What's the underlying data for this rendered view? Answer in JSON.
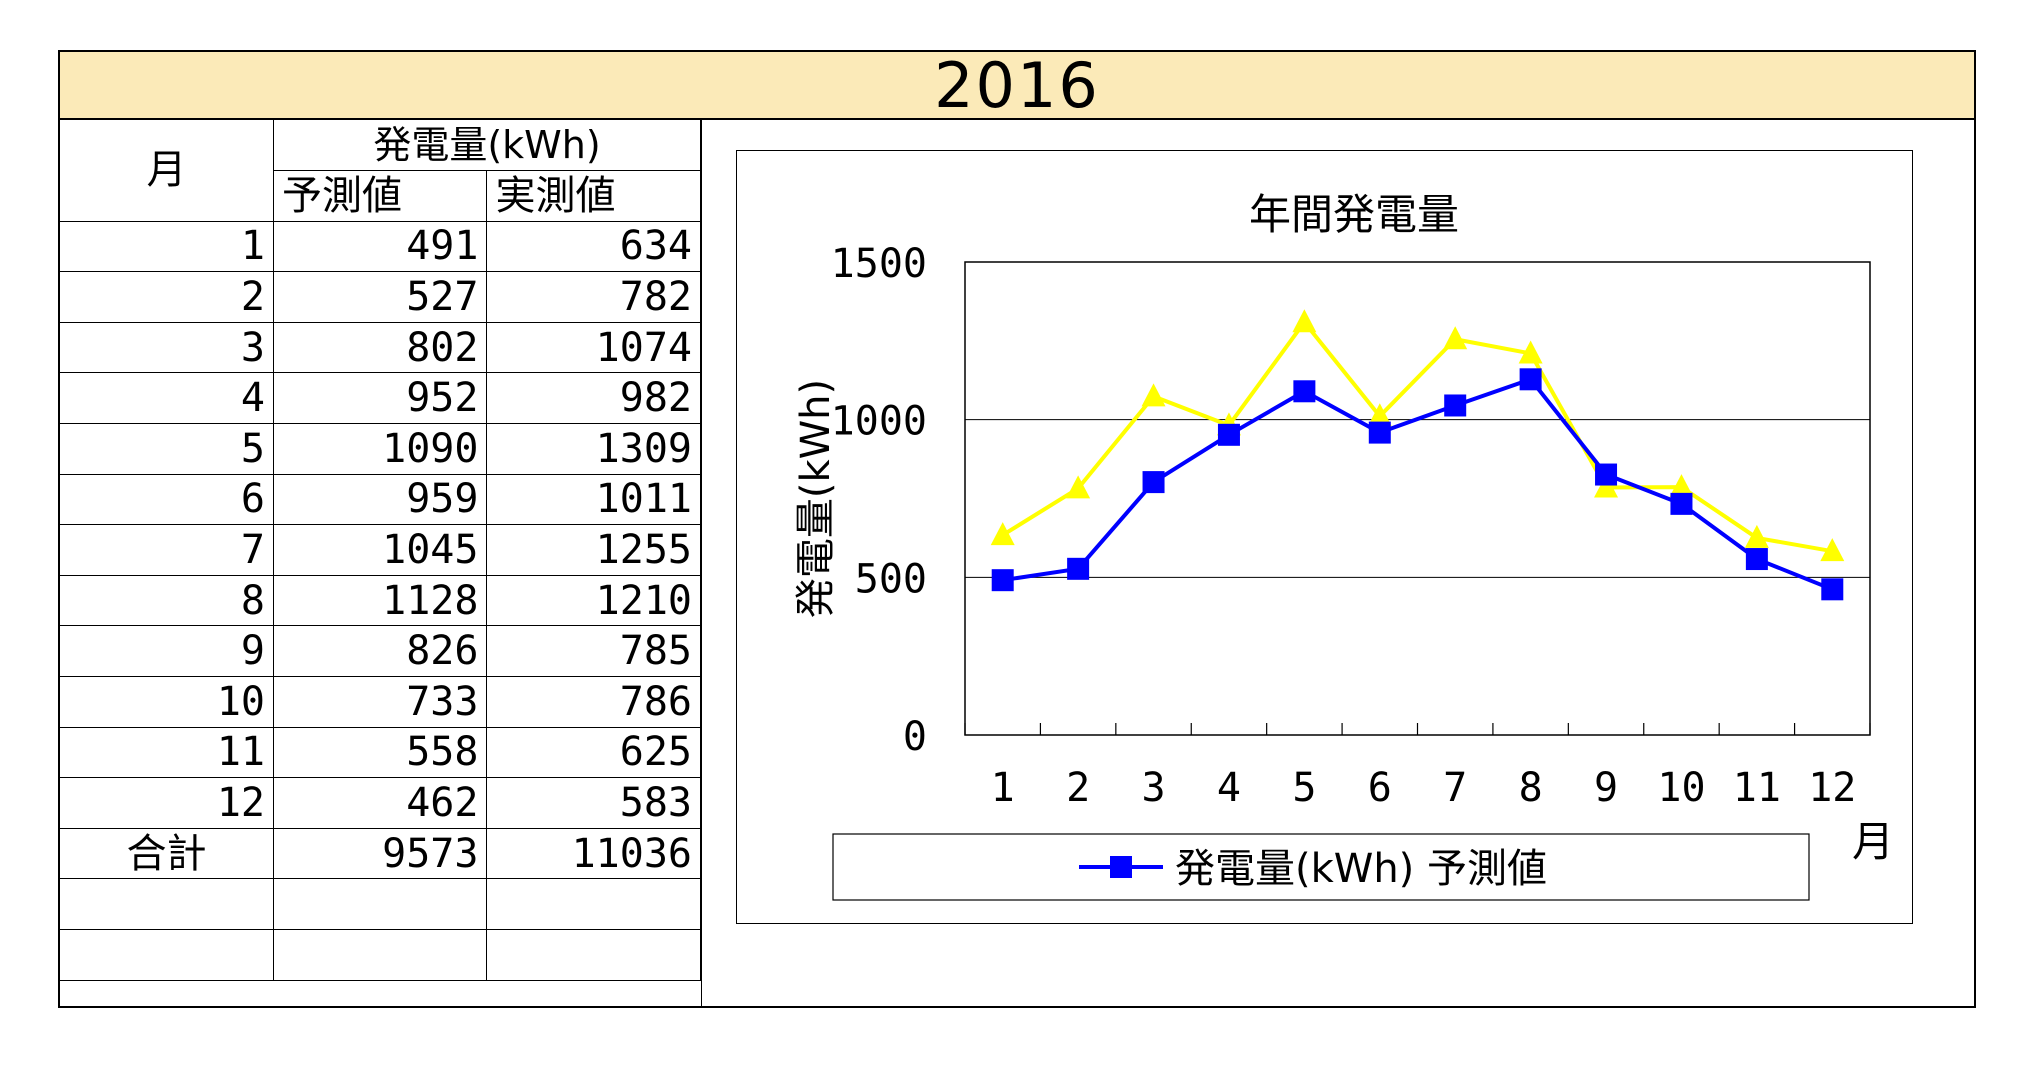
{
  "title": "2016",
  "table": {
    "month_header": "月",
    "gen_header": "発電量(kWh)",
    "pred_header": "予測値",
    "actual_header": "実測値",
    "rows": [
      {
        "m": "1",
        "pred": "491",
        "act": "634"
      },
      {
        "m": "2",
        "pred": "527",
        "act": "782"
      },
      {
        "m": "3",
        "pred": "802",
        "act": "1074"
      },
      {
        "m": "4",
        "pred": "952",
        "act": "982"
      },
      {
        "m": "5",
        "pred": "1090",
        "act": "1309"
      },
      {
        "m": "6",
        "pred": "959",
        "act": "1011"
      },
      {
        "m": "7",
        "pred": "1045",
        "act": "1255"
      },
      {
        "m": "8",
        "pred": "1128",
        "act": "1210"
      },
      {
        "m": "9",
        "pred": "826",
        "act": "785"
      },
      {
        "m": "10",
        "pred": "733",
        "act": "786"
      },
      {
        "m": "11",
        "pred": "558",
        "act": "625"
      },
      {
        "m": "12",
        "pred": "462",
        "act": "583"
      }
    ],
    "total_label": "合計",
    "total_pred": "9573",
    "total_act": "11036"
  },
  "chart_data": {
    "type": "line",
    "title": "年間発電量",
    "xlabel": "月",
    "ylabel": "発電量(kWh)",
    "categories": [
      "1",
      "2",
      "3",
      "4",
      "5",
      "6",
      "7",
      "8",
      "9",
      "10",
      "11",
      "12"
    ],
    "ylim": [
      0,
      1500
    ],
    "yticks": [
      0,
      500,
      1000,
      1500
    ],
    "ytick_labels": [
      "0",
      "500",
      "1000",
      "1500"
    ],
    "grid": true,
    "legend_position": "bottom",
    "series": [
      {
        "name": "発電量(kWh) 予測値",
        "color": "#0000ff",
        "marker": "square",
        "values": [
          491,
          527,
          802,
          952,
          1090,
          959,
          1045,
          1128,
          826,
          733,
          558,
          462
        ]
      },
      {
        "color": "#ffff00",
        "marker": "triangle",
        "values": [
          634,
          782,
          1074,
          982,
          1309,
          1011,
          1255,
          1210,
          785,
          786,
          625,
          583
        ]
      }
    ]
  }
}
